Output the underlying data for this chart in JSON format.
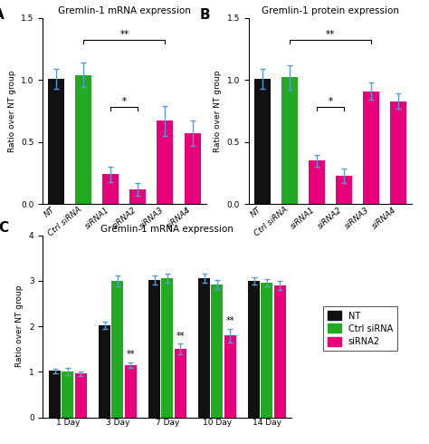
{
  "panel_A": {
    "title": "Gremlin-1 mRNA expression",
    "categories": [
      "NT",
      "Ctrl siRNA",
      "siRNA1",
      "siRNA2",
      "siRNA3",
      "siRNA4"
    ],
    "values": [
      1.01,
      1.04,
      0.24,
      0.12,
      0.67,
      0.57
    ],
    "errors": [
      0.08,
      0.1,
      0.06,
      0.05,
      0.12,
      0.1
    ],
    "colors": [
      "#111111",
      "#22aa22",
      "#e8007a",
      "#e8007a",
      "#e8007a",
      "#e8007a"
    ],
    "ylabel": "Ratio over NT group",
    "ylim": [
      0,
      1.5
    ],
    "yticks": [
      0.0,
      0.5,
      1.0,
      1.5
    ]
  },
  "panel_B": {
    "title": "Gremlin-1 protein expression",
    "categories": [
      "NT",
      "Ctrl siRNA",
      "siRNA1",
      "siRNA2",
      "siRNA3",
      "siRNA4"
    ],
    "values": [
      1.01,
      1.02,
      0.35,
      0.23,
      0.91,
      0.83
    ],
    "errors": [
      0.08,
      0.1,
      0.05,
      0.06,
      0.07,
      0.06
    ],
    "colors": [
      "#111111",
      "#22aa22",
      "#e8007a",
      "#e8007a",
      "#e8007a",
      "#e8007a"
    ],
    "ylabel": "Ratio over NT group",
    "ylim": [
      0,
      1.5
    ],
    "yticks": [
      0.0,
      0.5,
      1.0,
      1.5
    ]
  },
  "panel_C": {
    "title": "Gremlin-1 mRNA expression",
    "categories": [
      "1 Day",
      "3 Day",
      "7 Day",
      "10 Day",
      "14 Day"
    ],
    "series": {
      "NT": [
        1.02,
        2.02,
        3.02,
        3.05,
        3.0
      ],
      "Ctrl siRNA": [
        1.0,
        3.0,
        3.05,
        2.92,
        2.96
      ],
      "siRNA2": [
        0.96,
        1.15,
        1.5,
        1.8,
        2.9
      ]
    },
    "errors": {
      "NT": [
        0.05,
        0.08,
        0.1,
        0.1,
        0.08
      ],
      "Ctrl siRNA": [
        0.08,
        0.12,
        0.1,
        0.1,
        0.08
      ],
      "siRNA2": [
        0.05,
        0.06,
        0.12,
        0.15,
        0.1
      ]
    },
    "colors": {
      "NT": "#111111",
      "Ctrl siRNA": "#22aa22",
      "siRNA2": "#e8007a"
    },
    "ylabel": "Ratio over NT group",
    "ylim": [
      0,
      4
    ],
    "yticks": [
      0,
      1,
      2,
      3,
      4
    ],
    "sig_groups": [
      1,
      2,
      3
    ]
  },
  "error_color": "#5b9bd5",
  "tick_fontsize": 6.5,
  "title_fontsize": 7.5,
  "ylabel_fontsize": 6.5,
  "label_fontsize": 11
}
